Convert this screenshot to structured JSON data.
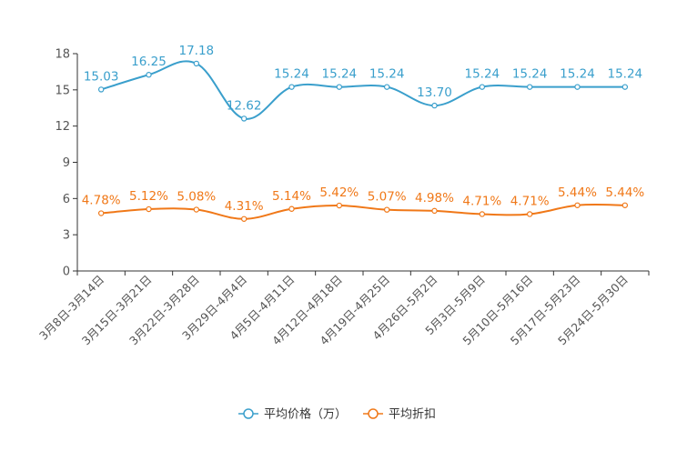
{
  "chart_data": {
    "type": "line",
    "title": "",
    "xlabel": "",
    "ylabel": "",
    "ylim": [
      0,
      18
    ],
    "yticks": [
      0,
      3,
      6,
      9,
      12,
      15,
      18
    ],
    "grid": false,
    "legend_position": "bottom-center",
    "categories": [
      "3月8日-3月14日",
      "3月15日-3月21日",
      "3月22日-3月28日",
      "3月29日-4月4日",
      "4月5日-4月11日",
      "4月12日-4月18日",
      "4月19日-4月25日",
      "4月26日-5月2日",
      "5月3日-5月9日",
      "5月10日-5月16日",
      "5月17日-5月23日",
      "5月24日-5月30日"
    ],
    "series": [
      {
        "name": "平均价格（万）",
        "color": "#3a9fcc",
        "values": [
          15.03,
          16.25,
          17.18,
          12.62,
          15.24,
          15.24,
          15.24,
          13.7,
          15.24,
          15.24,
          15.24,
          15.24
        ],
        "labels": [
          "15.03",
          "16.25",
          "17.18",
          "12.62",
          "15.24",
          "15.24",
          "15.24",
          "13.70",
          "15.24",
          "15.24",
          "15.24",
          "15.24"
        ]
      },
      {
        "name": "平均折扣",
        "color": "#f07818",
        "values": [
          4.78,
          5.12,
          5.08,
          4.31,
          5.14,
          5.42,
          5.07,
          4.98,
          4.71,
          4.71,
          5.44,
          5.44
        ],
        "labels": [
          "4.78%",
          "5.12%",
          "5.08%",
          "4.31%",
          "5.14%",
          "5.42%",
          "5.07%",
          "4.98%",
          "4.71%",
          "4.71%",
          "5.44%",
          "5.44%"
        ]
      }
    ]
  }
}
